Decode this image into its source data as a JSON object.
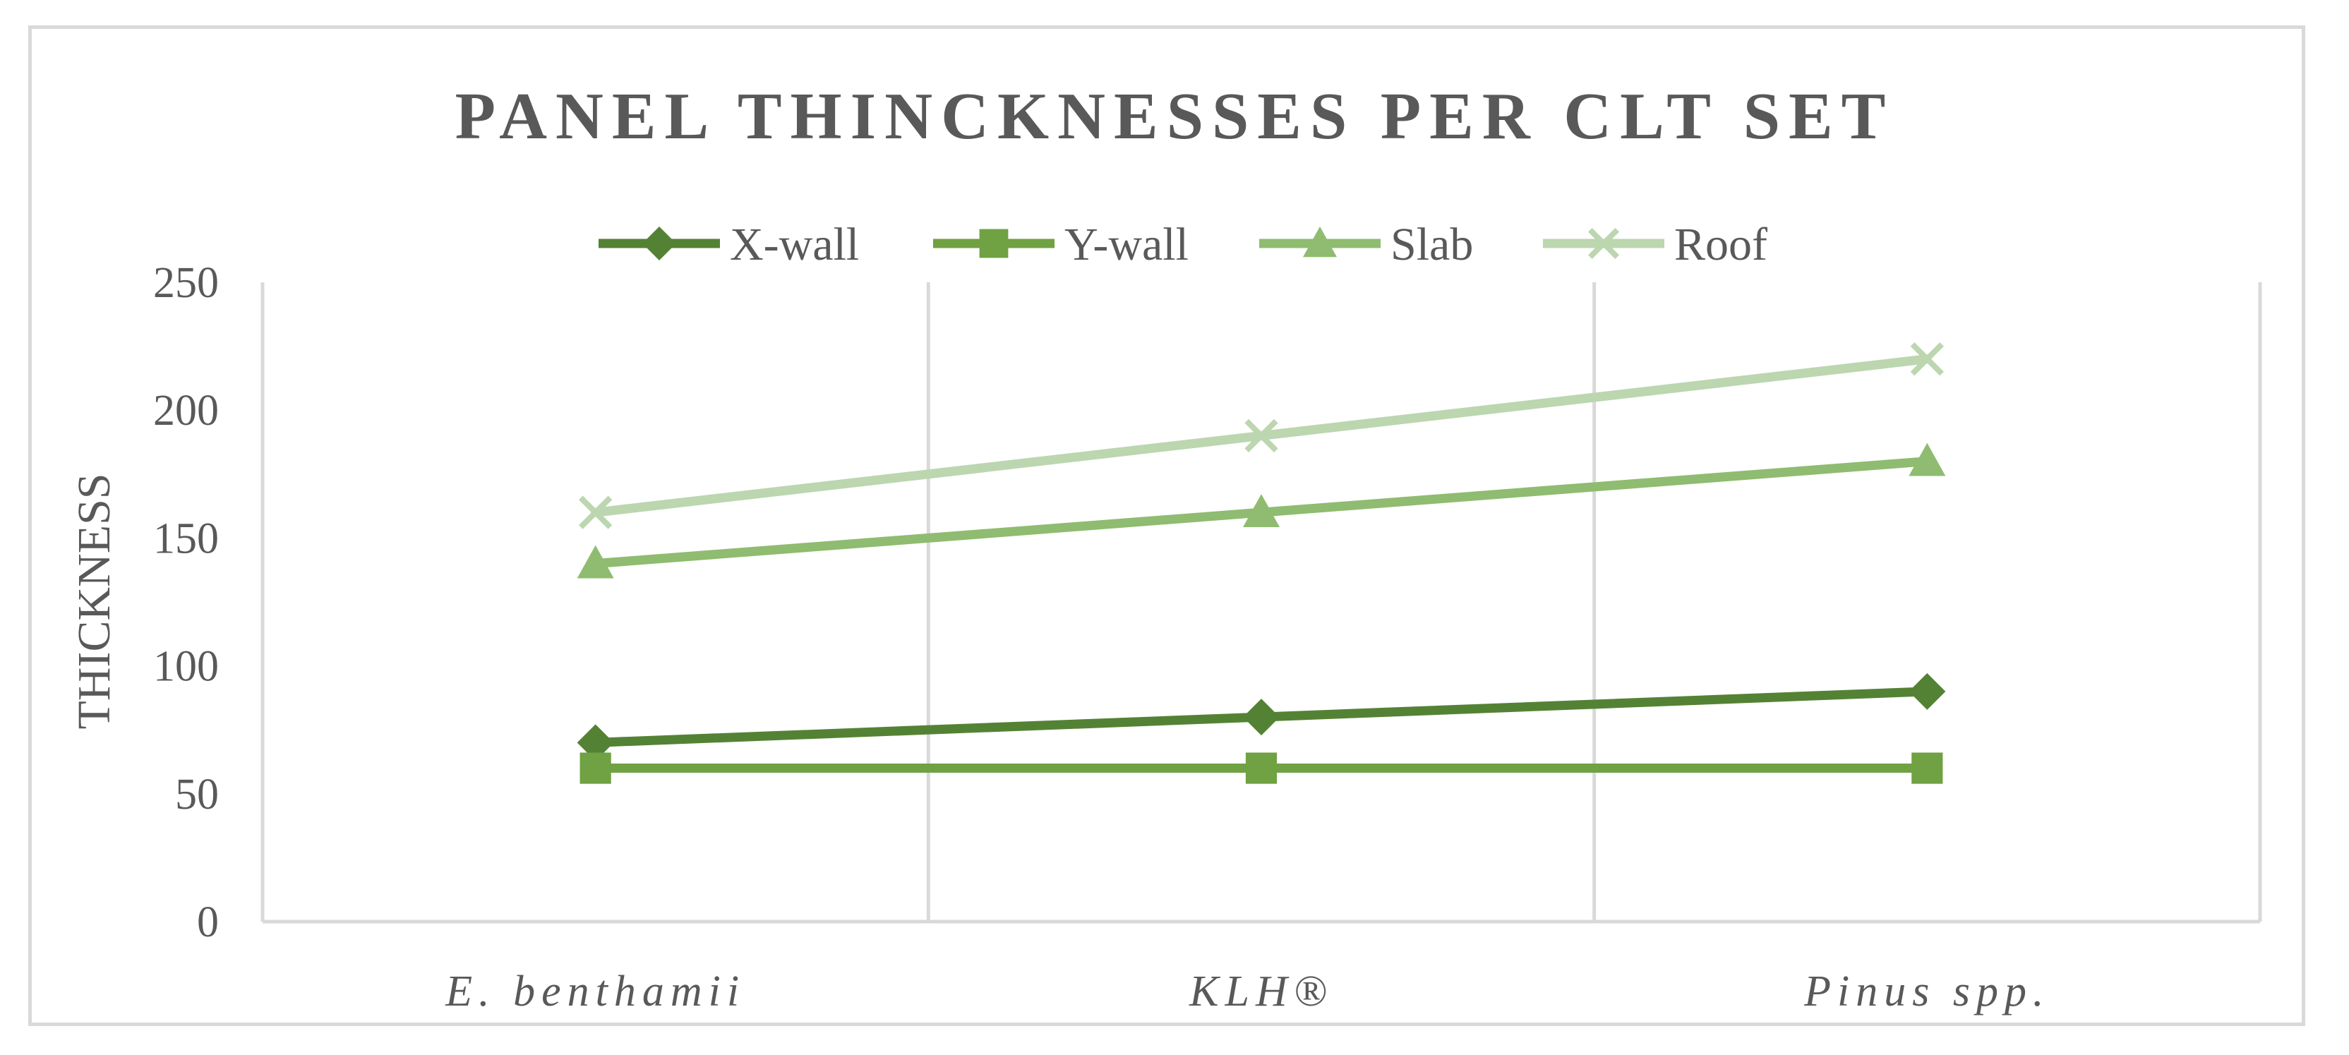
{
  "chart_data": {
    "type": "line",
    "title": "PANEL THINCKNESSES PER CLT SET",
    "xlabel": "",
    "ylabel": "THICKNESS",
    "categories": [
      "E. benthamii",
      "KLH®",
      "Pinus spp."
    ],
    "ylim": [
      0,
      250
    ],
    "yticks": [
      "0",
      "50",
      "100",
      "150",
      "200",
      "250"
    ],
    "grid": "vertical",
    "legend_position": "top",
    "series": [
      {
        "name": "X-wall",
        "values": [
          70,
          80,
          90
        ],
        "color": "#548235",
        "marker": "diamond"
      },
      {
        "name": "Y-wall",
        "values": [
          60,
          60,
          60
        ],
        "color": "#70a142",
        "marker": "square"
      },
      {
        "name": "Slab",
        "values": [
          140,
          160,
          180
        ],
        "color": "#8fbc70",
        "marker": "triangle"
      },
      {
        "name": "Roof",
        "values": [
          160,
          190,
          220
        ],
        "color": "#bcd6b0",
        "marker": "x"
      }
    ]
  }
}
